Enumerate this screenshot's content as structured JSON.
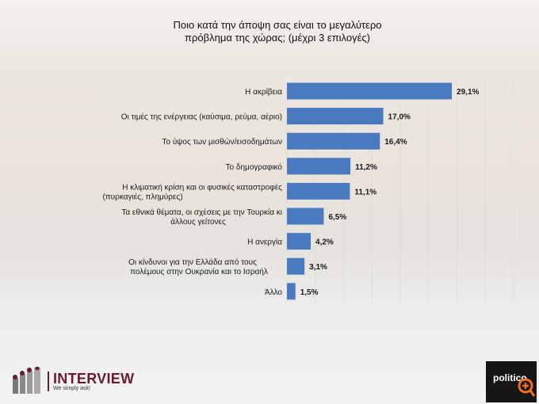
{
  "chart_data": {
    "type": "bar",
    "orientation": "horizontal",
    "title": "Ποιο κατά την άποψη σας είναι το μεγαλύτερο πρόβλημα της χώρας; (μέχρι 3 επιλογές)",
    "title_lines": [
      "Ποιο κατά την άποψη σας είναι το μεγαλύτερο",
      "πρόβλημα της χώρας; (μέχρι 3 επιλογές)"
    ],
    "categories": [
      [
        "Η ακρίβεια"
      ],
      [
        "Οι τιμές της ενέργειας (καύσιμα, ρεύμα, αέριο)"
      ],
      [
        "Το ύψος των μισθών/εισοδημάτων"
      ],
      [
        "Το δημογραφικό"
      ],
      [
        "Η κλιματική κρίση και οι φυσικές καταστροφές",
        "(πυρκαγιές, πλημύρες)"
      ],
      [
        "Τα εθνικά θέματα, οι σχέσεις με την Τουρκία κι",
        "άλλους γείτονες"
      ],
      [
        "Η ανεργία"
      ],
      [
        "Οι κίνδυνοι για την Ελλάδα από τους",
        "πολέμους στην Ουκρανία και το Ισραήλ"
      ],
      [
        "Άλλο"
      ]
    ],
    "values": [
      29.1,
      17.0,
      16.4,
      11.2,
      11.1,
      6.5,
      4.2,
      3.1,
      1.5
    ],
    "data_labels": [
      "29,1%",
      "17,0%",
      "16,4%",
      "11,2%",
      "11,1%",
      "6,5%",
      "4,2%",
      "3,1%",
      "1,5%"
    ],
    "unit": "%",
    "xlim": [
      0,
      40
    ],
    "grid": true,
    "bar_color": "#4a7bc0"
  },
  "branding": {
    "left_logo": "INTERVIEW",
    "left_tagline": "We simply ask!",
    "right_logo": "politico"
  }
}
